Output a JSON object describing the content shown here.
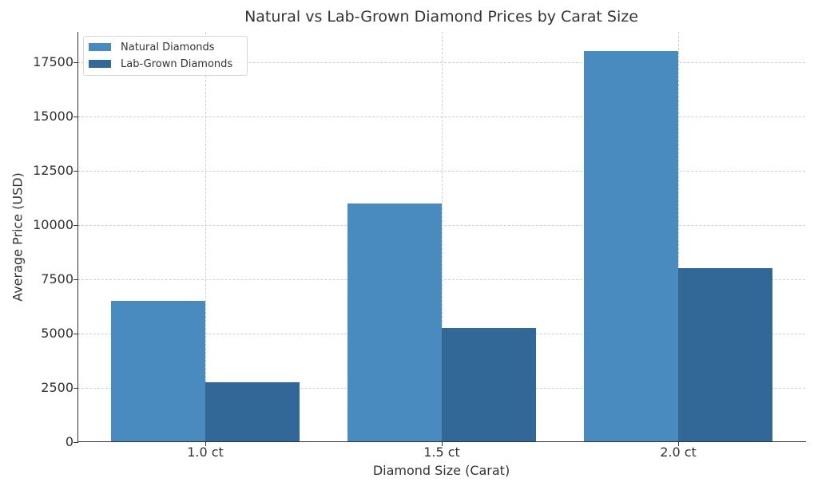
{
  "chart_data": {
    "type": "bar",
    "title": "Natural vs Lab-Grown Diamond Prices by Carat Size",
    "xlabel": "Diamond Size (Carat)",
    "ylabel": "Average Price (USD)",
    "categories": [
      "1.0 ct",
      "1.5 ct",
      "2.0 ct"
    ],
    "series": [
      {
        "name": "Natural Diamonds",
        "color": "#4a8bbf",
        "values": [
          6500,
          11000,
          18000
        ]
      },
      {
        "name": "Lab-Grown Diamonds",
        "color": "#316897",
        "values": [
          2750,
          5250,
          8000
        ]
      }
    ],
    "yticks": [
      "0",
      "2500",
      "5000",
      "7500",
      "10000",
      "12500",
      "15000",
      "17500"
    ],
    "ylim": [
      0,
      18900
    ],
    "grid": true,
    "legend_position": "upper left"
  }
}
